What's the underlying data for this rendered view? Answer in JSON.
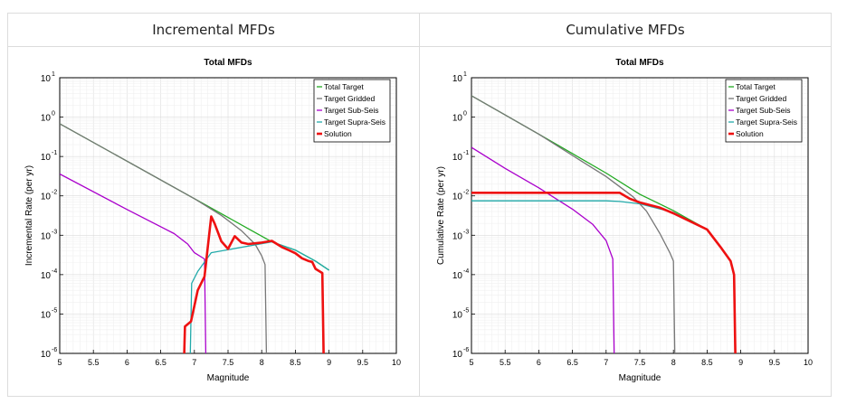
{
  "panels": [
    {
      "id": "incremental",
      "header": "Incremental MFDs"
    },
    {
      "id": "cumulative",
      "header": "Cumulative MFDs"
    }
  ],
  "chart_data": [
    {
      "type": "line",
      "title": "Total MFDs",
      "xlabel": "Magnitude",
      "ylabel": "Incremental Rate (per yr)",
      "xlim": [
        5,
        10
      ],
      "ylim": [
        1e-06,
        10
      ],
      "yscale": "log",
      "grid": true,
      "legend_position": "top-right",
      "x_ticks": [
        "5",
        "5.5",
        "6",
        "6.5",
        "7",
        "7.5",
        "8",
        "8.5",
        "9",
        "9.5",
        "10"
      ],
      "y_ticks": [
        {
          "base": "10",
          "exp": "1"
        },
        {
          "base": "10",
          "exp": "0"
        },
        {
          "base": "10",
          "exp": "-1"
        },
        {
          "base": "10",
          "exp": "-2"
        },
        {
          "base": "10",
          "exp": "-3"
        },
        {
          "base": "10",
          "exp": "-4"
        },
        {
          "base": "10",
          "exp": "-5"
        },
        {
          "base": "10",
          "exp": "-6"
        }
      ],
      "series": [
        {
          "name": "Total Target",
          "color": "#22aa22",
          "width": 1.3,
          "points": [
            [
              5.0,
              0.68
            ],
            [
              7.0,
              0.0085
            ],
            [
              8.15,
              0.00068
            ],
            [
              8.5,
              0.00042
            ],
            [
              8.8,
              0.00022
            ],
            [
              9.0,
              0.00013
            ]
          ]
        },
        {
          "name": "Target Gridded",
          "color": "#777777",
          "width": 1.3,
          "points": [
            [
              5.0,
              0.68
            ],
            [
              7.0,
              0.0085
            ],
            [
              7.4,
              0.0032
            ],
            [
              7.7,
              0.0013
            ],
            [
              7.9,
              0.0006
            ],
            [
              8.0,
              0.0003
            ],
            [
              8.05,
              0.00018
            ],
            [
              8.07,
              1e-06
            ]
          ]
        },
        {
          "name": "Target Sub-Seis",
          "color": "#aa00cc",
          "width": 1.3,
          "points": [
            [
              5.0,
              0.036
            ],
            [
              6.0,
              0.0045
            ],
            [
              6.7,
              0.0011
            ],
            [
              6.9,
              0.0006
            ],
            [
              7.0,
              0.00036
            ],
            [
              7.15,
              0.00025
            ],
            [
              7.17,
              1e-06
            ]
          ]
        },
        {
          "name": "Target Supra-Seis",
          "color": "#22aaaa",
          "width": 1.3,
          "points": [
            [
              6.94,
              1e-06
            ],
            [
              6.96,
              6e-05
            ],
            [
              7.05,
              0.00012
            ],
            [
              7.25,
              0.00036
            ],
            [
              8.15,
              0.00068
            ],
            [
              8.5,
              0.00042
            ],
            [
              8.8,
              0.00022
            ],
            [
              9.0,
              0.00013
            ]
          ]
        },
        {
          "name": "Solution",
          "color": "#ee1111",
          "width": 2.6,
          "points": [
            [
              6.85,
              1e-06
            ],
            [
              6.86,
              4.8e-06
            ],
            [
              6.95,
              6.5e-06
            ],
            [
              7.05,
              4e-05
            ],
            [
              7.15,
              9e-05
            ],
            [
              7.25,
              0.003
            ],
            [
              7.3,
              0.002
            ],
            [
              7.4,
              0.0007
            ],
            [
              7.5,
              0.00045
            ],
            [
              7.6,
              0.00095
            ],
            [
              7.7,
              0.00065
            ],
            [
              7.8,
              0.0006
            ],
            [
              8.0,
              0.00065
            ],
            [
              8.15,
              0.00072
            ],
            [
              8.3,
              0.0005
            ],
            [
              8.4,
              0.00042
            ],
            [
              8.5,
              0.00035
            ],
            [
              8.6,
              0.00026
            ],
            [
              8.7,
              0.00022
            ],
            [
              8.75,
              0.00021
            ],
            [
              8.8,
              0.00014
            ],
            [
              8.9,
              0.00011
            ],
            [
              8.92,
              1e-06
            ]
          ]
        }
      ]
    },
    {
      "type": "line",
      "title": "Total MFDs",
      "xlabel": "Magnitude",
      "ylabel": "Cumulative Rate (per yr)",
      "xlim": [
        5,
        10
      ],
      "ylim": [
        1e-06,
        10
      ],
      "yscale": "log",
      "grid": true,
      "legend_position": "top-right",
      "x_ticks": [
        "5",
        "5.5",
        "6",
        "6.5",
        "7",
        "7.5",
        "8",
        "8.5",
        "9",
        "9.5",
        "10"
      ],
      "y_ticks": [
        {
          "base": "10",
          "exp": "1"
        },
        {
          "base": "10",
          "exp": "0"
        },
        {
          "base": "10",
          "exp": "-1"
        },
        {
          "base": "10",
          "exp": "-2"
        },
        {
          "base": "10",
          "exp": "-3"
        },
        {
          "base": "10",
          "exp": "-4"
        },
        {
          "base": "10",
          "exp": "-5"
        },
        {
          "base": "10",
          "exp": "-6"
        }
      ],
      "series": [
        {
          "name": "Total Target",
          "color": "#22aa22",
          "width": 1.3,
          "points": [
            [
              5.0,
              3.5
            ],
            [
              6.0,
              0.37
            ],
            [
              7.0,
              0.038
            ],
            [
              7.5,
              0.011
            ],
            [
              8.0,
              0.0042
            ],
            [
              8.5,
              0.0014
            ],
            [
              8.7,
              0.0005
            ],
            [
              8.85,
              0.00022
            ],
            [
              8.9,
              0.0001
            ],
            [
              8.92,
              1e-06
            ]
          ]
        },
        {
          "name": "Target Gridded",
          "color": "#777777",
          "width": 1.3,
          "points": [
            [
              5.0,
              3.5
            ],
            [
              6.0,
              0.37
            ],
            [
              6.6,
              0.083
            ],
            [
              7.0,
              0.031
            ],
            [
              7.4,
              0.0095
            ],
            [
              7.6,
              0.0041
            ],
            [
              7.8,
              0.0011
            ],
            [
              7.95,
              0.00035
            ],
            [
              8.0,
              0.00022
            ],
            [
              8.02,
              1e-06
            ]
          ]
        },
        {
          "name": "Target Sub-Seis",
          "color": "#aa00cc",
          "width": 1.3,
          "points": [
            [
              5.0,
              0.17
            ],
            [
              5.5,
              0.05
            ],
            [
              6.0,
              0.016
            ],
            [
              6.5,
              0.0046
            ],
            [
              6.8,
              0.0019
            ],
            [
              7.0,
              0.00073
            ],
            [
              7.1,
              0.00025
            ],
            [
              7.12,
              1e-06
            ]
          ]
        },
        {
          "name": "Target Supra-Seis",
          "color": "#22aaaa",
          "width": 1.3,
          "points": [
            [
              5.0,
              0.0075
            ],
            [
              7.0,
              0.0075
            ],
            [
              7.2,
              0.0072
            ],
            [
              7.5,
              0.0063
            ],
            [
              8.0,
              0.0038
            ],
            [
              8.5,
              0.0014
            ],
            [
              8.7,
              0.0005
            ],
            [
              8.85,
              0.00022
            ],
            [
              8.9,
              0.0001
            ],
            [
              8.92,
              1e-06
            ]
          ]
        },
        {
          "name": "Solution",
          "color": "#ee1111",
          "width": 2.6,
          "points": [
            [
              5.0,
              0.012
            ],
            [
              7.2,
              0.012
            ],
            [
              7.35,
              0.0085
            ],
            [
              7.5,
              0.0068
            ],
            [
              7.8,
              0.005
            ],
            [
              8.0,
              0.0036
            ],
            [
              8.5,
              0.0014
            ],
            [
              8.7,
              0.0005
            ],
            [
              8.85,
              0.00022
            ],
            [
              8.9,
              0.0001
            ],
            [
              8.92,
              1e-06
            ]
          ]
        }
      ]
    }
  ]
}
